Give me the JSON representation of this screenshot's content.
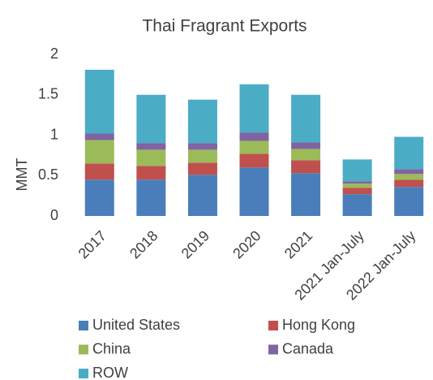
{
  "chart_data": {
    "type": "stacked_bar",
    "title": "Thai Fragrant Exports",
    "y_label": "MMT",
    "categories": [
      "2017",
      "2018",
      "2019",
      "2020",
      "2021",
      "2021 Jan-July",
      "2022 Jan-July"
    ],
    "series": [
      {
        "name": "United States",
        "color": "#4a7ebb",
        "values": [
          0.45,
          0.45,
          0.51,
          0.6,
          0.53,
          0.27,
          0.36
        ]
      },
      {
        "name": "Hong Kong",
        "color": "#c0504d",
        "values": [
          0.2,
          0.17,
          0.15,
          0.17,
          0.16,
          0.08,
          0.09
        ]
      },
      {
        "name": "China",
        "color": "#9bbb59",
        "values": [
          0.29,
          0.2,
          0.16,
          0.16,
          0.14,
          0.05,
          0.07
        ]
      },
      {
        "name": "Canada",
        "color": "#8064a2",
        "values": [
          0.08,
          0.08,
          0.08,
          0.1,
          0.08,
          0.03,
          0.06
        ]
      },
      {
        "name": "ROW",
        "color": "#4bacc6",
        "values": [
          0.79,
          0.6,
          0.54,
          0.6,
          0.59,
          0.27,
          0.4
        ]
      }
    ],
    "ylim": [
      0,
      2
    ],
    "yticks": [
      0,
      0.5,
      1,
      1.5,
      2
    ],
    "grid": false,
    "legend": "bottom"
  }
}
